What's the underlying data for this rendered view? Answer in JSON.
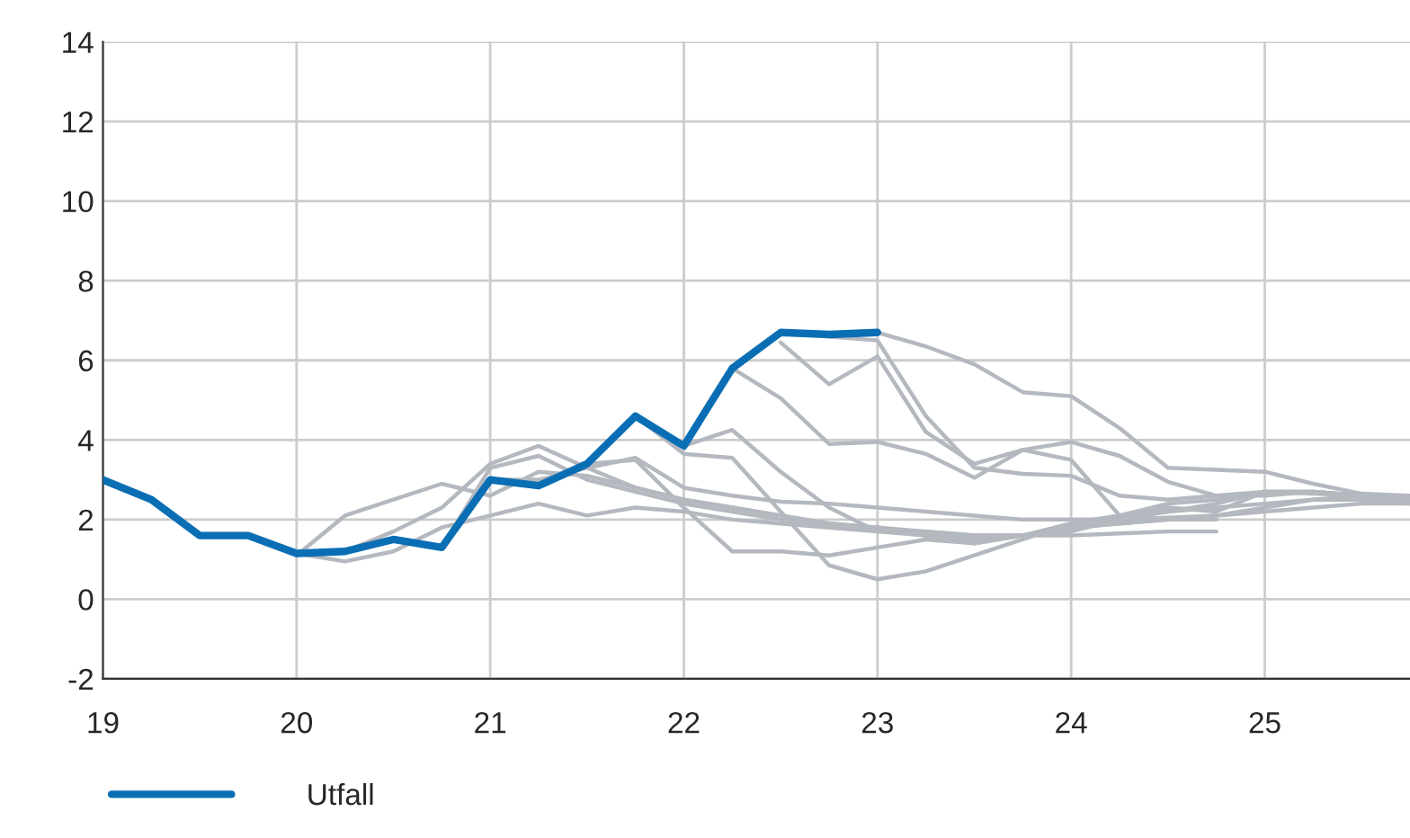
{
  "chart_data": {
    "type": "line",
    "xlim": [
      19,
      25.75
    ],
    "ylim": [
      -2,
      14
    ],
    "xticks": [
      19,
      20,
      21,
      22,
      23,
      24,
      25
    ],
    "yticks": [
      -2,
      0,
      2,
      4,
      6,
      8,
      10,
      12,
      14
    ],
    "grid": true,
    "legend": "bottom left",
    "marker": "none",
    "line_style": "solid",
    "series": [
      {
        "color": "#b4b8bf",
        "x": [
          20,
          20.25,
          20.5,
          20.75,
          21,
          21.25,
          21.5,
          21.75,
          22,
          22.25,
          22.5,
          22.75,
          23,
          23.25,
          23.5,
          23.75,
          24,
          24.25,
          24.5,
          24.75
        ],
        "values": [
          1.1,
          2.1,
          2.5,
          2.9,
          2.6,
          3.2,
          3.1,
          2.8,
          2.5,
          2.3,
          2.1,
          1.9,
          1.8,
          1.7,
          1.6,
          1.6,
          1.6,
          1.65,
          1.7,
          1.7
        ]
      },
      {
        "color": "#b4b8bf",
        "x": [
          20,
          20.25,
          20.5,
          20.75,
          21,
          21.25,
          21.5,
          21.75,
          22,
          22.25,
          22.5,
          22.75,
          23,
          23.25,
          23.5,
          23.75,
          24,
          24.25,
          24.5,
          24.75
        ],
        "values": [
          1.15,
          0.95,
          1.2,
          1.8,
          2.1,
          2.4,
          2.1,
          2.3,
          2.2,
          2.0,
          1.9,
          1.8,
          1.7,
          1.7,
          1.6,
          1.6,
          1.8,
          1.9,
          2.0,
          2.0
        ]
      },
      {
        "color": "#b4b8bf",
        "x": [
          20,
          20.25,
          20.5,
          20.75,
          21,
          21.25,
          21.5,
          21.75,
          22,
          22.25,
          22.5,
          22.75,
          23,
          23.25,
          23.5,
          23.75,
          24,
          24.25,
          24.5,
          24.75
        ],
        "values": [
          1.15,
          1.2,
          1.7,
          2.3,
          3.4,
          3.85,
          3.3,
          2.8,
          2.5,
          2.3,
          2.1,
          1.9,
          1.8,
          1.6,
          1.5,
          1.6,
          1.8,
          2.0,
          2.05,
          2.1
        ]
      },
      {
        "color": "#b4b8bf",
        "x": [
          20.75,
          21,
          21.25,
          21.5,
          21.75,
          22,
          22.25,
          22.5,
          22.75,
          23,
          23.25,
          23.5,
          23.75,
          24,
          24.25,
          24.5,
          24.75,
          25,
          25.25,
          25.5,
          25.75
        ],
        "values": [
          1.3,
          3.3,
          3.6,
          3.0,
          2.7,
          2.4,
          2.2,
          2.0,
          1.85,
          1.8,
          1.6,
          1.4,
          1.6,
          1.9,
          2.1,
          2.2,
          2.3,
          2.4,
          2.5,
          2.5,
          2.4
        ]
      },
      {
        "color": "#b4b8bf",
        "x": [
          21,
          21.25,
          21.5,
          21.75,
          22,
          22.25,
          22.5,
          22.75,
          23,
          23.25,
          23.5,
          23.75,
          24,
          24.25,
          24.5,
          24.75,
          25,
          25.25,
          25.5,
          25.75
        ],
        "values": [
          3.0,
          3.0,
          3.3,
          3.55,
          2.8,
          2.6,
          2.45,
          2.4,
          2.3,
          2.2,
          2.1,
          2.0,
          2.0,
          2.0,
          2.0,
          2.1,
          2.2,
          2.3,
          2.4,
          2.4
        ]
      },
      {
        "color": "#b4b8bf",
        "x": [
          21.5,
          21.75,
          22,
          22.25,
          22.5,
          22.75,
          23,
          23.25,
          23.5,
          23.75,
          24,
          24.25,
          24.5,
          24.75,
          25,
          25.25,
          25.5,
          25.75
        ],
        "values": [
          3.4,
          3.5,
          2.3,
          1.2,
          1.2,
          1.1,
          1.3,
          1.5,
          1.4,
          1.6,
          1.8,
          1.9,
          2.0,
          2.1,
          2.3,
          2.5,
          2.6,
          2.6
        ]
      },
      {
        "color": "#b4b8bf",
        "x": [
          21.75,
          22,
          22.25,
          22.5,
          22.75,
          23,
          23.25,
          23.5,
          23.75,
          24,
          24.25,
          24.5,
          24.75,
          25,
          25.25,
          25.5,
          25.75
        ],
        "values": [
          4.6,
          3.65,
          3.55,
          2.2,
          0.85,
          0.5,
          0.7,
          1.1,
          1.5,
          1.9,
          2.1,
          2.4,
          2.5,
          2.7,
          2.7,
          2.6,
          2.5
        ]
      },
      {
        "color": "#b4b8bf",
        "x": [
          22,
          22.25,
          22.5,
          22.75,
          23,
          23.25,
          23.5,
          23.75,
          24,
          24.25,
          24.5,
          24.75,
          25,
          25.25,
          25.5,
          25.75
        ],
        "values": [
          3.85,
          4.25,
          3.2,
          2.3,
          1.7,
          1.6,
          1.5,
          1.6,
          1.7,
          2.0,
          2.2,
          2.4,
          2.7,
          2.7,
          2.6,
          2.5
        ]
      },
      {
        "color": "#b4b8bf",
        "x": [
          22.25,
          22.5,
          22.75,
          23,
          23.25,
          23.5,
          23.75,
          24,
          24.25,
          24.5,
          24.75,
          25,
          25.25,
          25.5,
          25.75
        ],
        "values": [
          5.8,
          5.05,
          3.9,
          3.95,
          3.65,
          3.05,
          3.75,
          3.95,
          3.6,
          2.95,
          2.6,
          2.6,
          2.7,
          2.6,
          2.5
        ]
      },
      {
        "color": "#b4b8bf",
        "x": [
          22.5,
          22.75,
          23,
          23.25,
          23.5,
          23.75,
          24,
          24.25,
          24.5,
          24.75,
          25,
          25.25,
          25.5,
          25.75
        ],
        "values": [
          6.45,
          5.4,
          6.1,
          4.2,
          3.4,
          3.75,
          3.5,
          2.1,
          2.3,
          2.2,
          2.7,
          2.65,
          2.6,
          2.5
        ]
      },
      {
        "color": "#b4b8bf",
        "x": [
          22.75,
          23,
          23.25,
          23.5,
          23.75,
          24,
          24.25,
          24.5,
          24.75,
          25,
          25.25,
          25.5,
          25.75
        ],
        "values": [
          6.6,
          6.5,
          4.6,
          3.3,
          3.15,
          3.1,
          2.6,
          2.5,
          2.6,
          2.7,
          2.7,
          2.6,
          2.5
        ]
      },
      {
        "color": "#b4b8bf",
        "x": [
          23,
          23.25,
          23.5,
          23.75,
          24,
          24.25,
          24.5,
          24.75,
          25,
          25.25,
          25.5,
          25.75
        ],
        "values": [
          6.7,
          6.35,
          5.9,
          5.2,
          5.1,
          4.3,
          3.3,
          3.25,
          3.2,
          2.9,
          2.65,
          2.6
        ]
      },
      {
        "name": "Utfall",
        "color": "#0a6eb4",
        "x": [
          19,
          19.25,
          19.5,
          19.75,
          20,
          20.25,
          20.5,
          20.75,
          21,
          21.25,
          21.5,
          21.75,
          22,
          22.25,
          22.5,
          22.75,
          23
        ],
        "values": [
          3.0,
          2.5,
          1.6,
          1.6,
          1.15,
          1.2,
          1.5,
          1.3,
          3.0,
          2.85,
          3.4,
          4.6,
          3.85,
          5.8,
          6.7,
          6.65,
          6.7
        ]
      }
    ]
  }
}
